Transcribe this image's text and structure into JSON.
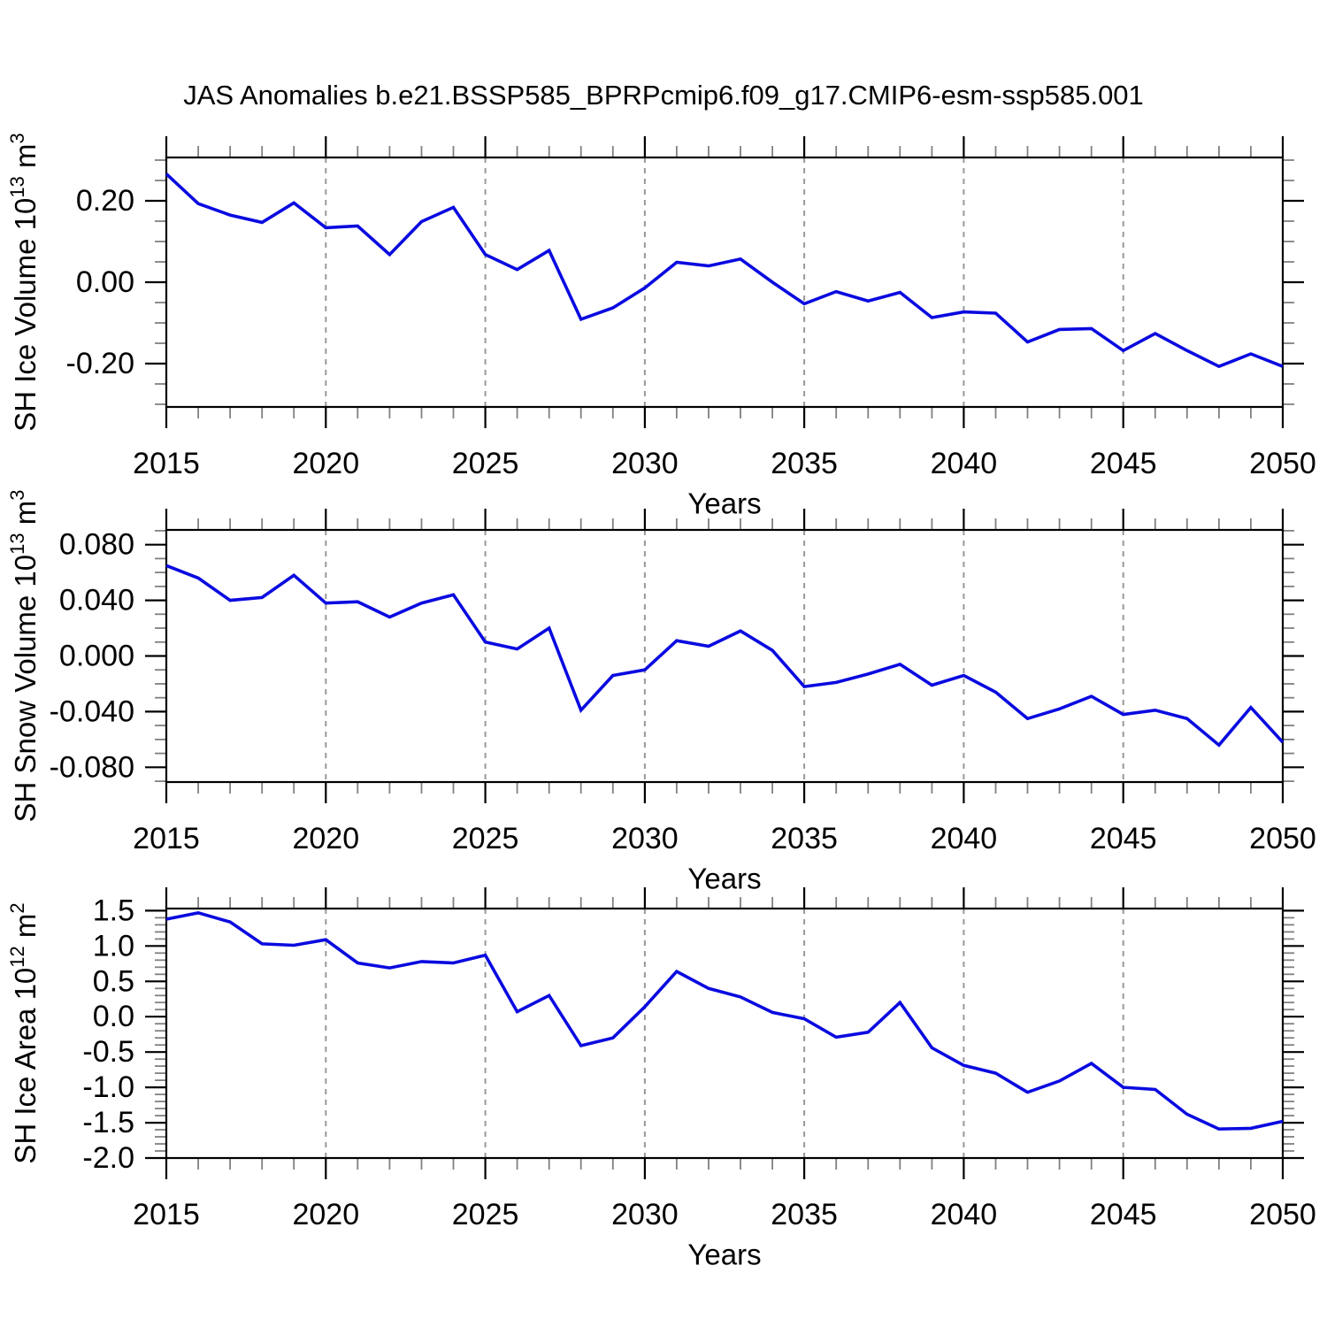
{
  "page": {
    "title": "JAS Anomalies b.e21.BSSP585_BPRPcmip6.f09_g17.CMIP6-esm-ssp585.001"
  },
  "style": {
    "series_color": "#0a0ae0",
    "axis_color": "#000000",
    "minor_tick_color": "#808080",
    "grid_color": "#999999",
    "background": "#ffffff",
    "text_color": "#000000"
  },
  "chart_data": {
    "type": "line",
    "title": "JAS Anomalies b.e21.BSSP585_BPRPcmip6.f09_g17.CMIP6-esm-ssp585.001",
    "x_label": "Years",
    "xlim": [
      2015,
      2050
    ],
    "x": [
      2015,
      2016,
      2017,
      2018,
      2019,
      2020,
      2021,
      2022,
      2023,
      2024,
      2025,
      2026,
      2027,
      2028,
      2029,
      2030,
      2031,
      2032,
      2033,
      2034,
      2035,
      2036,
      2037,
      2038,
      2039,
      2040,
      2041,
      2042,
      2043,
      2044,
      2045,
      2046,
      2047,
      2048,
      2049,
      2050
    ],
    "x_tick_labels": [
      "2015",
      "2020",
      "2025",
      "2030",
      "2035",
      "2040",
      "2045",
      "2050"
    ],
    "x_major_ticks": [
      2015,
      2020,
      2025,
      2030,
      2035,
      2040,
      2045,
      2050
    ],
    "x_minor_step": 1,
    "x_grid_lines": [
      2020,
      2025,
      2030,
      2035,
      2040,
      2045
    ],
    "grid": "dashed-vertical",
    "legend": "none",
    "panels": [
      {
        "id": "sh-ice-volume",
        "ylabel": "SH Ice Volume 10¹³ m³",
        "ylabel_parts": [
          {
            "t": "SH Ice Volume 10"
          },
          {
            "t": "13",
            "sup": true
          },
          {
            "t": " m"
          },
          {
            "t": "3",
            "sup": true
          }
        ],
        "ylim": [
          -0.3065,
          0.3065
        ],
        "y_major_ticks": [
          0.2,
          0.0,
          -0.2
        ],
        "y_tick_labels": [
          "0.20",
          "0.00",
          "-0.20"
        ],
        "y_minor_step": 0.05,
        "values": [
          0.266,
          0.193,
          0.165,
          0.147,
          0.195,
          0.134,
          0.138,
          0.068,
          0.149,
          0.184,
          0.068,
          0.031,
          0.078,
          -0.091,
          -0.063,
          -0.014,
          0.049,
          0.04,
          0.057,
          0.0,
          -0.053,
          -0.023,
          -0.046,
          -0.025,
          -0.087,
          -0.073,
          -0.076,
          -0.147,
          -0.116,
          -0.114,
          -0.168,
          -0.126,
          -0.168,
          -0.207,
          -0.176,
          -0.207
        ]
      },
      {
        "id": "sh-snow-volume",
        "ylabel": "SH Snow Volume 10¹³ m³",
        "ylabel_parts": [
          {
            "t": "SH Snow Volume 10"
          },
          {
            "t": "13",
            "sup": true
          },
          {
            "t": " m"
          },
          {
            "t": "3",
            "sup": true
          }
        ],
        "ylim": [
          -0.0906,
          0.0906
        ],
        "y_major_ticks": [
          0.08,
          0.04,
          0.0,
          -0.04,
          -0.08
        ],
        "y_tick_labels": [
          "0.080",
          "0.040",
          "0.000",
          "-0.040",
          "-0.080"
        ],
        "y_minor_step": 0.01,
        "values": [
          0.065,
          0.056,
          0.04,
          0.042,
          0.058,
          0.038,
          0.039,
          0.028,
          0.038,
          0.044,
          0.01,
          0.005,
          0.02,
          -0.039,
          -0.014,
          -0.01,
          0.011,
          0.007,
          0.018,
          0.004,
          -0.022,
          -0.019,
          -0.013,
          -0.006,
          -0.021,
          -0.014,
          -0.026,
          -0.045,
          -0.038,
          -0.029,
          -0.042,
          -0.039,
          -0.045,
          -0.064,
          -0.037,
          -0.062
        ]
      },
      {
        "id": "sh-ice-area",
        "ylabel": "SH Ice Area 10¹² m²",
        "ylabel_parts": [
          {
            "t": "SH Ice Area 10"
          },
          {
            "t": "12",
            "sup": true
          },
          {
            "t": " m"
          },
          {
            "t": "2",
            "sup": true
          }
        ],
        "ylim": [
          -2.0,
          1.53
        ],
        "y_major_ticks": [
          1.5,
          1.0,
          0.5,
          0.0,
          -0.5,
          -1.0,
          -1.5,
          -2.0
        ],
        "y_tick_labels": [
          "1.5",
          "1.0",
          "0.5",
          "0.0",
          "-0.5",
          "-1.0",
          "-1.5",
          "-2.0"
        ],
        "y_minor_step": 0.1,
        "values": [
          1.38,
          1.47,
          1.34,
          1.03,
          1.01,
          1.09,
          0.76,
          0.69,
          0.78,
          0.76,
          0.87,
          0.07,
          0.3,
          -0.41,
          -0.3,
          0.14,
          0.64,
          0.4,
          0.28,
          0.06,
          -0.03,
          -0.29,
          -0.22,
          0.2,
          -0.44,
          -0.69,
          -0.8,
          -1.07,
          -0.91,
          -0.66,
          -1.0,
          -1.03,
          -1.38,
          -1.59,
          -1.58,
          -1.48
        ]
      }
    ]
  }
}
